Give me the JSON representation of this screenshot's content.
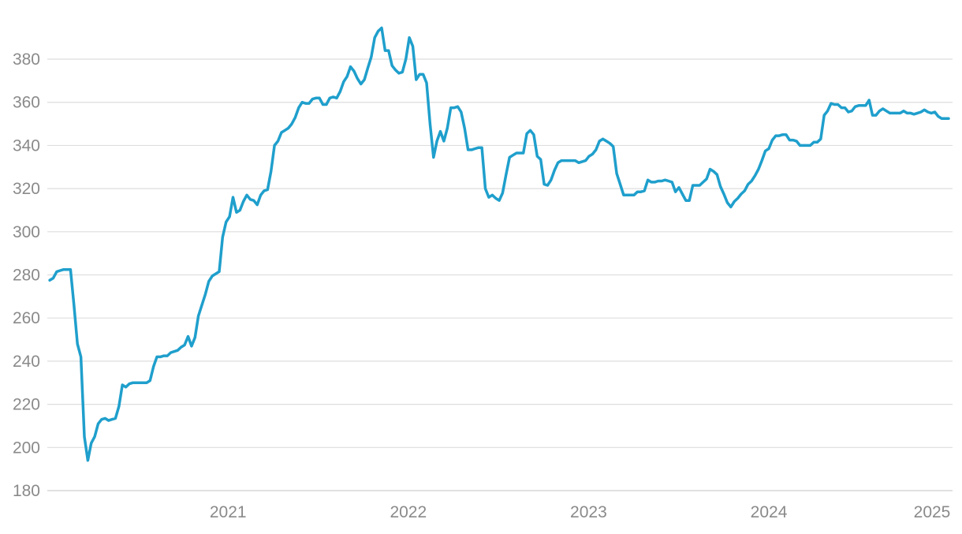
{
  "chart_data": {
    "type": "line",
    "title": "",
    "xlabel": "",
    "ylabel": "",
    "ylim": [
      180,
      395
    ],
    "y_ticks": [
      "180",
      "200",
      "220",
      "240",
      "260",
      "280",
      "300",
      "320",
      "340",
      "360",
      "380"
    ],
    "x_ticks": [
      {
        "label": "2021",
        "x": "2021-01-01"
      },
      {
        "label": "2022",
        "x": "2022-01-01"
      },
      {
        "label": "2023",
        "x": "2023-01-01"
      },
      {
        "label": "2024",
        "x": "2024-01-01"
      },
      {
        "label": "2025",
        "x": "2025-01-01"
      }
    ],
    "xlim": [
      "2020-01-01",
      "2025-01-07"
    ],
    "grid": "horizontal",
    "colors": {
      "line": "#1f9fcc",
      "grid": "#dedede",
      "text": "#8a8a8a"
    },
    "series": [
      {
        "points": [
          [
            "2020-01-06",
            277.5
          ],
          [
            "2020-01-13",
            278.5
          ],
          [
            "2020-01-20",
            281.5
          ],
          [
            "2020-01-27",
            282
          ],
          [
            "2020-02-03",
            282.5
          ],
          [
            "2020-02-10",
            282.5
          ],
          [
            "2020-02-17",
            282.5
          ],
          [
            "2020-02-24",
            266
          ],
          [
            "2020-03-02",
            248
          ],
          [
            "2020-03-09",
            242
          ],
          [
            "2020-03-16",
            205
          ],
          [
            "2020-03-23",
            194
          ],
          [
            "2020-03-30",
            202
          ],
          [
            "2020-04-06",
            205
          ],
          [
            "2020-04-13",
            211
          ],
          [
            "2020-04-20",
            213
          ],
          [
            "2020-04-27",
            213.5
          ],
          [
            "2020-05-04",
            212.5
          ],
          [
            "2020-05-11",
            213
          ],
          [
            "2020-05-18",
            213.5
          ],
          [
            "2020-05-25",
            219
          ],
          [
            "2020-06-01",
            229
          ],
          [
            "2020-06-08",
            228
          ],
          [
            "2020-06-15",
            229.5
          ],
          [
            "2020-06-22",
            230
          ],
          [
            "2020-06-29",
            230
          ],
          [
            "2020-07-20",
            230
          ],
          [
            "2020-07-27",
            231
          ],
          [
            "2020-08-03",
            237.5
          ],
          [
            "2020-08-10",
            242
          ],
          [
            "2020-08-17",
            242
          ],
          [
            "2020-08-24",
            242.5
          ],
          [
            "2020-08-31",
            242.5
          ],
          [
            "2020-09-07",
            244
          ],
          [
            "2020-09-14",
            244.5
          ],
          [
            "2020-09-21",
            245
          ],
          [
            "2020-09-28",
            246.5
          ],
          [
            "2020-10-05",
            247.5
          ],
          [
            "2020-10-12",
            251.5
          ],
          [
            "2020-10-19",
            247
          ],
          [
            "2020-10-26",
            251
          ],
          [
            "2020-11-02",
            261
          ],
          [
            "2020-11-09",
            266
          ],
          [
            "2020-11-16",
            271
          ],
          [
            "2020-11-23",
            277
          ],
          [
            "2020-11-30",
            279.5
          ],
          [
            "2020-12-07",
            280.5
          ],
          [
            "2020-12-14",
            281.5
          ],
          [
            "2020-12-21",
            297.5
          ],
          [
            "2020-12-28",
            304.5
          ],
          [
            "2021-01-04",
            307
          ],
          [
            "2021-01-11",
            316
          ],
          [
            "2021-01-18",
            309
          ],
          [
            "2021-01-25",
            310
          ],
          [
            "2021-02-01",
            314
          ],
          [
            "2021-02-08",
            317
          ],
          [
            "2021-02-15",
            315
          ],
          [
            "2021-02-22",
            314.5
          ],
          [
            "2021-03-01",
            312.5
          ],
          [
            "2021-03-08",
            317
          ],
          [
            "2021-03-15",
            319
          ],
          [
            "2021-03-22",
            319.5
          ],
          [
            "2021-03-29",
            328
          ],
          [
            "2021-04-05",
            340
          ],
          [
            "2021-04-12",
            342
          ],
          [
            "2021-04-19",
            346
          ],
          [
            "2021-04-26",
            347
          ],
          [
            "2021-05-03",
            348
          ],
          [
            "2021-05-10",
            350
          ],
          [
            "2021-05-17",
            353
          ],
          [
            "2021-05-24",
            357.5
          ],
          [
            "2021-05-31",
            360
          ],
          [
            "2021-06-07",
            359.5
          ],
          [
            "2021-06-14",
            359.5
          ],
          [
            "2021-06-21",
            361.5
          ],
          [
            "2021-06-28",
            362
          ],
          [
            "2021-07-05",
            362
          ],
          [
            "2021-07-12",
            359
          ],
          [
            "2021-07-19",
            359
          ],
          [
            "2021-07-26",
            362
          ],
          [
            "2021-08-02",
            362.5
          ],
          [
            "2021-08-09",
            362
          ],
          [
            "2021-08-16",
            365
          ],
          [
            "2021-08-23",
            369.5
          ],
          [
            "2021-08-30",
            372
          ],
          [
            "2021-09-06",
            376.5
          ],
          [
            "2021-09-13",
            374.5
          ],
          [
            "2021-09-20",
            371
          ],
          [
            "2021-09-27",
            368.5
          ],
          [
            "2021-10-04",
            370.5
          ],
          [
            "2021-10-11",
            376
          ],
          [
            "2021-10-18",
            381
          ],
          [
            "2021-10-25",
            390
          ],
          [
            "2021-11-01",
            393
          ],
          [
            "2021-11-08",
            394.5
          ],
          [
            "2021-11-15",
            384
          ],
          [
            "2021-11-22",
            384
          ],
          [
            "2021-11-29",
            377
          ],
          [
            "2021-12-06",
            375
          ],
          [
            "2021-12-13",
            373.5
          ],
          [
            "2021-12-20",
            374
          ],
          [
            "2021-12-27",
            380
          ],
          [
            "2022-01-03",
            390
          ],
          [
            "2022-01-10",
            386
          ],
          [
            "2022-01-17",
            370.5
          ],
          [
            "2022-01-24",
            373
          ],
          [
            "2022-01-31",
            373
          ],
          [
            "2022-02-07",
            369
          ],
          [
            "2022-02-14",
            350
          ],
          [
            "2022-02-21",
            334.5
          ],
          [
            "2022-02-28",
            342
          ],
          [
            "2022-03-07",
            346.5
          ],
          [
            "2022-03-14",
            342
          ],
          [
            "2022-03-21",
            348
          ],
          [
            "2022-03-28",
            357.5
          ],
          [
            "2022-04-04",
            357.5
          ],
          [
            "2022-04-11",
            358
          ],
          [
            "2022-04-18",
            355.5
          ],
          [
            "2022-04-25",
            348
          ],
          [
            "2022-05-02",
            338
          ],
          [
            "2022-05-09",
            338
          ],
          [
            "2022-05-16",
            338.5
          ],
          [
            "2022-05-23",
            339
          ],
          [
            "2022-05-30",
            339
          ],
          [
            "2022-06-06",
            320
          ],
          [
            "2022-06-13",
            316
          ],
          [
            "2022-06-20",
            317
          ],
          [
            "2022-06-27",
            315.5
          ],
          [
            "2022-07-04",
            314.5
          ],
          [
            "2022-07-11",
            318
          ],
          [
            "2022-07-18",
            326.5
          ],
          [
            "2022-07-25",
            334.5
          ],
          [
            "2022-08-01",
            335.5
          ],
          [
            "2022-08-08",
            336.5
          ],
          [
            "2022-08-15",
            336.5
          ],
          [
            "2022-08-22",
            336.5
          ],
          [
            "2022-08-29",
            345.5
          ],
          [
            "2022-09-05",
            347
          ],
          [
            "2022-09-12",
            345
          ],
          [
            "2022-09-19",
            335
          ],
          [
            "2022-09-26",
            333.5
          ],
          [
            "2022-10-03",
            322
          ],
          [
            "2022-10-10",
            321.5
          ],
          [
            "2022-10-17",
            324
          ],
          [
            "2022-10-24",
            328.5
          ],
          [
            "2022-10-31",
            332
          ],
          [
            "2022-11-07",
            333
          ],
          [
            "2022-11-14",
            333
          ],
          [
            "2022-11-21",
            333
          ],
          [
            "2022-11-28",
            333
          ],
          [
            "2022-12-05",
            333
          ],
          [
            "2022-12-12",
            332
          ],
          [
            "2022-12-19",
            332.5
          ],
          [
            "2022-12-26",
            333
          ],
          [
            "2023-01-02",
            335
          ],
          [
            "2023-01-09",
            336
          ],
          [
            "2023-01-16",
            338
          ],
          [
            "2023-01-23",
            342
          ],
          [
            "2023-01-30",
            343
          ],
          [
            "2023-02-06",
            342
          ],
          [
            "2023-02-13",
            341
          ],
          [
            "2023-02-20",
            339.5
          ],
          [
            "2023-02-27",
            327
          ],
          [
            "2023-03-06",
            322
          ],
          [
            "2023-03-13",
            317
          ],
          [
            "2023-03-20",
            317
          ],
          [
            "2023-03-27",
            317
          ],
          [
            "2023-04-03",
            317
          ],
          [
            "2023-04-10",
            318.5
          ],
          [
            "2023-04-17",
            318.5
          ],
          [
            "2023-04-24",
            319
          ],
          [
            "2023-05-01",
            324
          ],
          [
            "2023-05-08",
            323
          ],
          [
            "2023-05-15",
            323
          ],
          [
            "2023-05-22",
            323.5
          ],
          [
            "2023-05-29",
            323.5
          ],
          [
            "2023-06-05",
            324
          ],
          [
            "2023-06-12",
            323.5
          ],
          [
            "2023-06-19",
            323
          ],
          [
            "2023-06-26",
            318.5
          ],
          [
            "2023-07-03",
            320.5
          ],
          [
            "2023-07-10",
            317.5
          ],
          [
            "2023-07-17",
            314.5
          ],
          [
            "2023-07-24",
            314.5
          ],
          [
            "2023-07-31",
            321.5
          ],
          [
            "2023-08-07",
            321.5
          ],
          [
            "2023-08-14",
            321.5
          ],
          [
            "2023-08-21",
            323
          ],
          [
            "2023-08-28",
            324.5
          ],
          [
            "2023-09-04",
            329
          ],
          [
            "2023-09-11",
            328
          ],
          [
            "2023-09-18",
            326.5
          ],
          [
            "2023-09-25",
            321
          ],
          [
            "2023-10-02",
            317.5
          ],
          [
            "2023-10-09",
            313.5
          ],
          [
            "2023-10-16",
            311.5
          ],
          [
            "2023-10-23",
            314
          ],
          [
            "2023-10-30",
            315.5
          ],
          [
            "2023-11-06",
            317.5
          ],
          [
            "2023-11-13",
            319
          ],
          [
            "2023-11-20",
            322
          ],
          [
            "2023-11-27",
            323.5
          ],
          [
            "2023-12-04",
            326
          ],
          [
            "2023-12-11",
            329
          ],
          [
            "2023-12-18",
            333
          ],
          [
            "2023-12-25",
            337.5
          ],
          [
            "2024-01-01",
            338.5
          ],
          [
            "2024-01-08",
            342.5
          ],
          [
            "2024-01-15",
            344.5
          ],
          [
            "2024-01-22",
            344.5
          ],
          [
            "2024-01-29",
            345
          ],
          [
            "2024-02-05",
            345
          ],
          [
            "2024-02-12",
            342.5
          ],
          [
            "2024-02-19",
            342.5
          ],
          [
            "2024-02-26",
            342
          ],
          [
            "2024-03-04",
            340
          ],
          [
            "2024-03-11",
            340
          ],
          [
            "2024-03-18",
            340
          ],
          [
            "2024-03-25",
            340
          ],
          [
            "2024-04-01",
            341.5
          ],
          [
            "2024-04-08",
            341.5
          ],
          [
            "2024-04-15",
            343
          ],
          [
            "2024-04-22",
            354
          ],
          [
            "2024-04-29",
            356
          ],
          [
            "2024-05-06",
            359.5
          ],
          [
            "2024-05-13",
            359
          ],
          [
            "2024-05-20",
            359
          ],
          [
            "2024-05-27",
            357.5
          ],
          [
            "2024-06-03",
            357.5
          ],
          [
            "2024-06-10",
            355.5
          ],
          [
            "2024-06-17",
            356
          ],
          [
            "2024-06-24",
            358
          ],
          [
            "2024-07-01",
            358.5
          ],
          [
            "2024-07-08",
            358.5
          ],
          [
            "2024-07-15",
            358.5
          ],
          [
            "2024-07-22",
            361
          ],
          [
            "2024-07-29",
            354
          ],
          [
            "2024-08-05",
            354
          ],
          [
            "2024-08-12",
            356
          ],
          [
            "2024-08-19",
            357
          ],
          [
            "2024-08-26",
            356
          ],
          [
            "2024-09-02",
            355
          ],
          [
            "2024-09-09",
            355
          ],
          [
            "2024-09-16",
            355
          ],
          [
            "2024-09-23",
            355
          ],
          [
            "2024-09-30",
            356
          ],
          [
            "2024-10-07",
            355
          ],
          [
            "2024-10-14",
            355
          ],
          [
            "2024-10-21",
            354.5
          ],
          [
            "2024-10-28",
            355
          ],
          [
            "2024-11-04",
            355.5
          ],
          [
            "2024-11-11",
            356.5
          ],
          [
            "2024-11-18",
            355.5
          ],
          [
            "2024-11-25",
            355
          ],
          [
            "2024-12-02",
            355.5
          ],
          [
            "2024-12-09",
            353.5
          ],
          [
            "2024-12-16",
            352.5
          ],
          [
            "2024-12-23",
            352.5
          ],
          [
            "2024-12-30",
            352.5
          ]
        ]
      }
    ]
  }
}
